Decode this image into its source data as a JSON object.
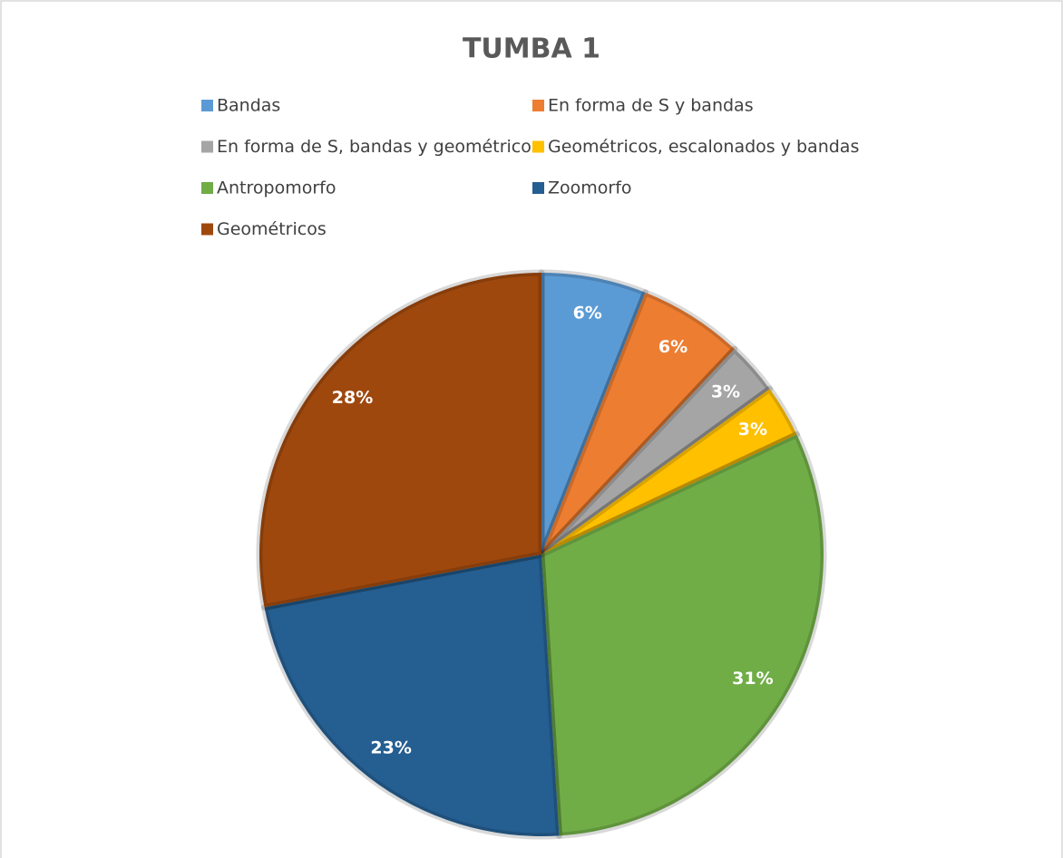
{
  "chart_data": {
    "type": "pie",
    "title": "TUMBA 1",
    "categories": [
      "Bandas",
      "En forma de S y bandas",
      "En forma de S, bandas y geométricos",
      "Geométricos, escalonados y bandas",
      "Antropomorfo",
      "Zoomorfo",
      "Geométricos"
    ],
    "values": [
      6,
      6,
      3,
      3,
      31,
      23,
      28
    ],
    "value_labels": [
      "6%",
      "6%",
      "3%",
      "3%",
      "31%",
      "23%",
      "28%"
    ],
    "colors": [
      "#5b9bd5",
      "#ed7d31",
      "#a5a5a5",
      "#ffc000",
      "#70ad47",
      "#255e91",
      "#9e480e"
    ],
    "legend": "top"
  }
}
